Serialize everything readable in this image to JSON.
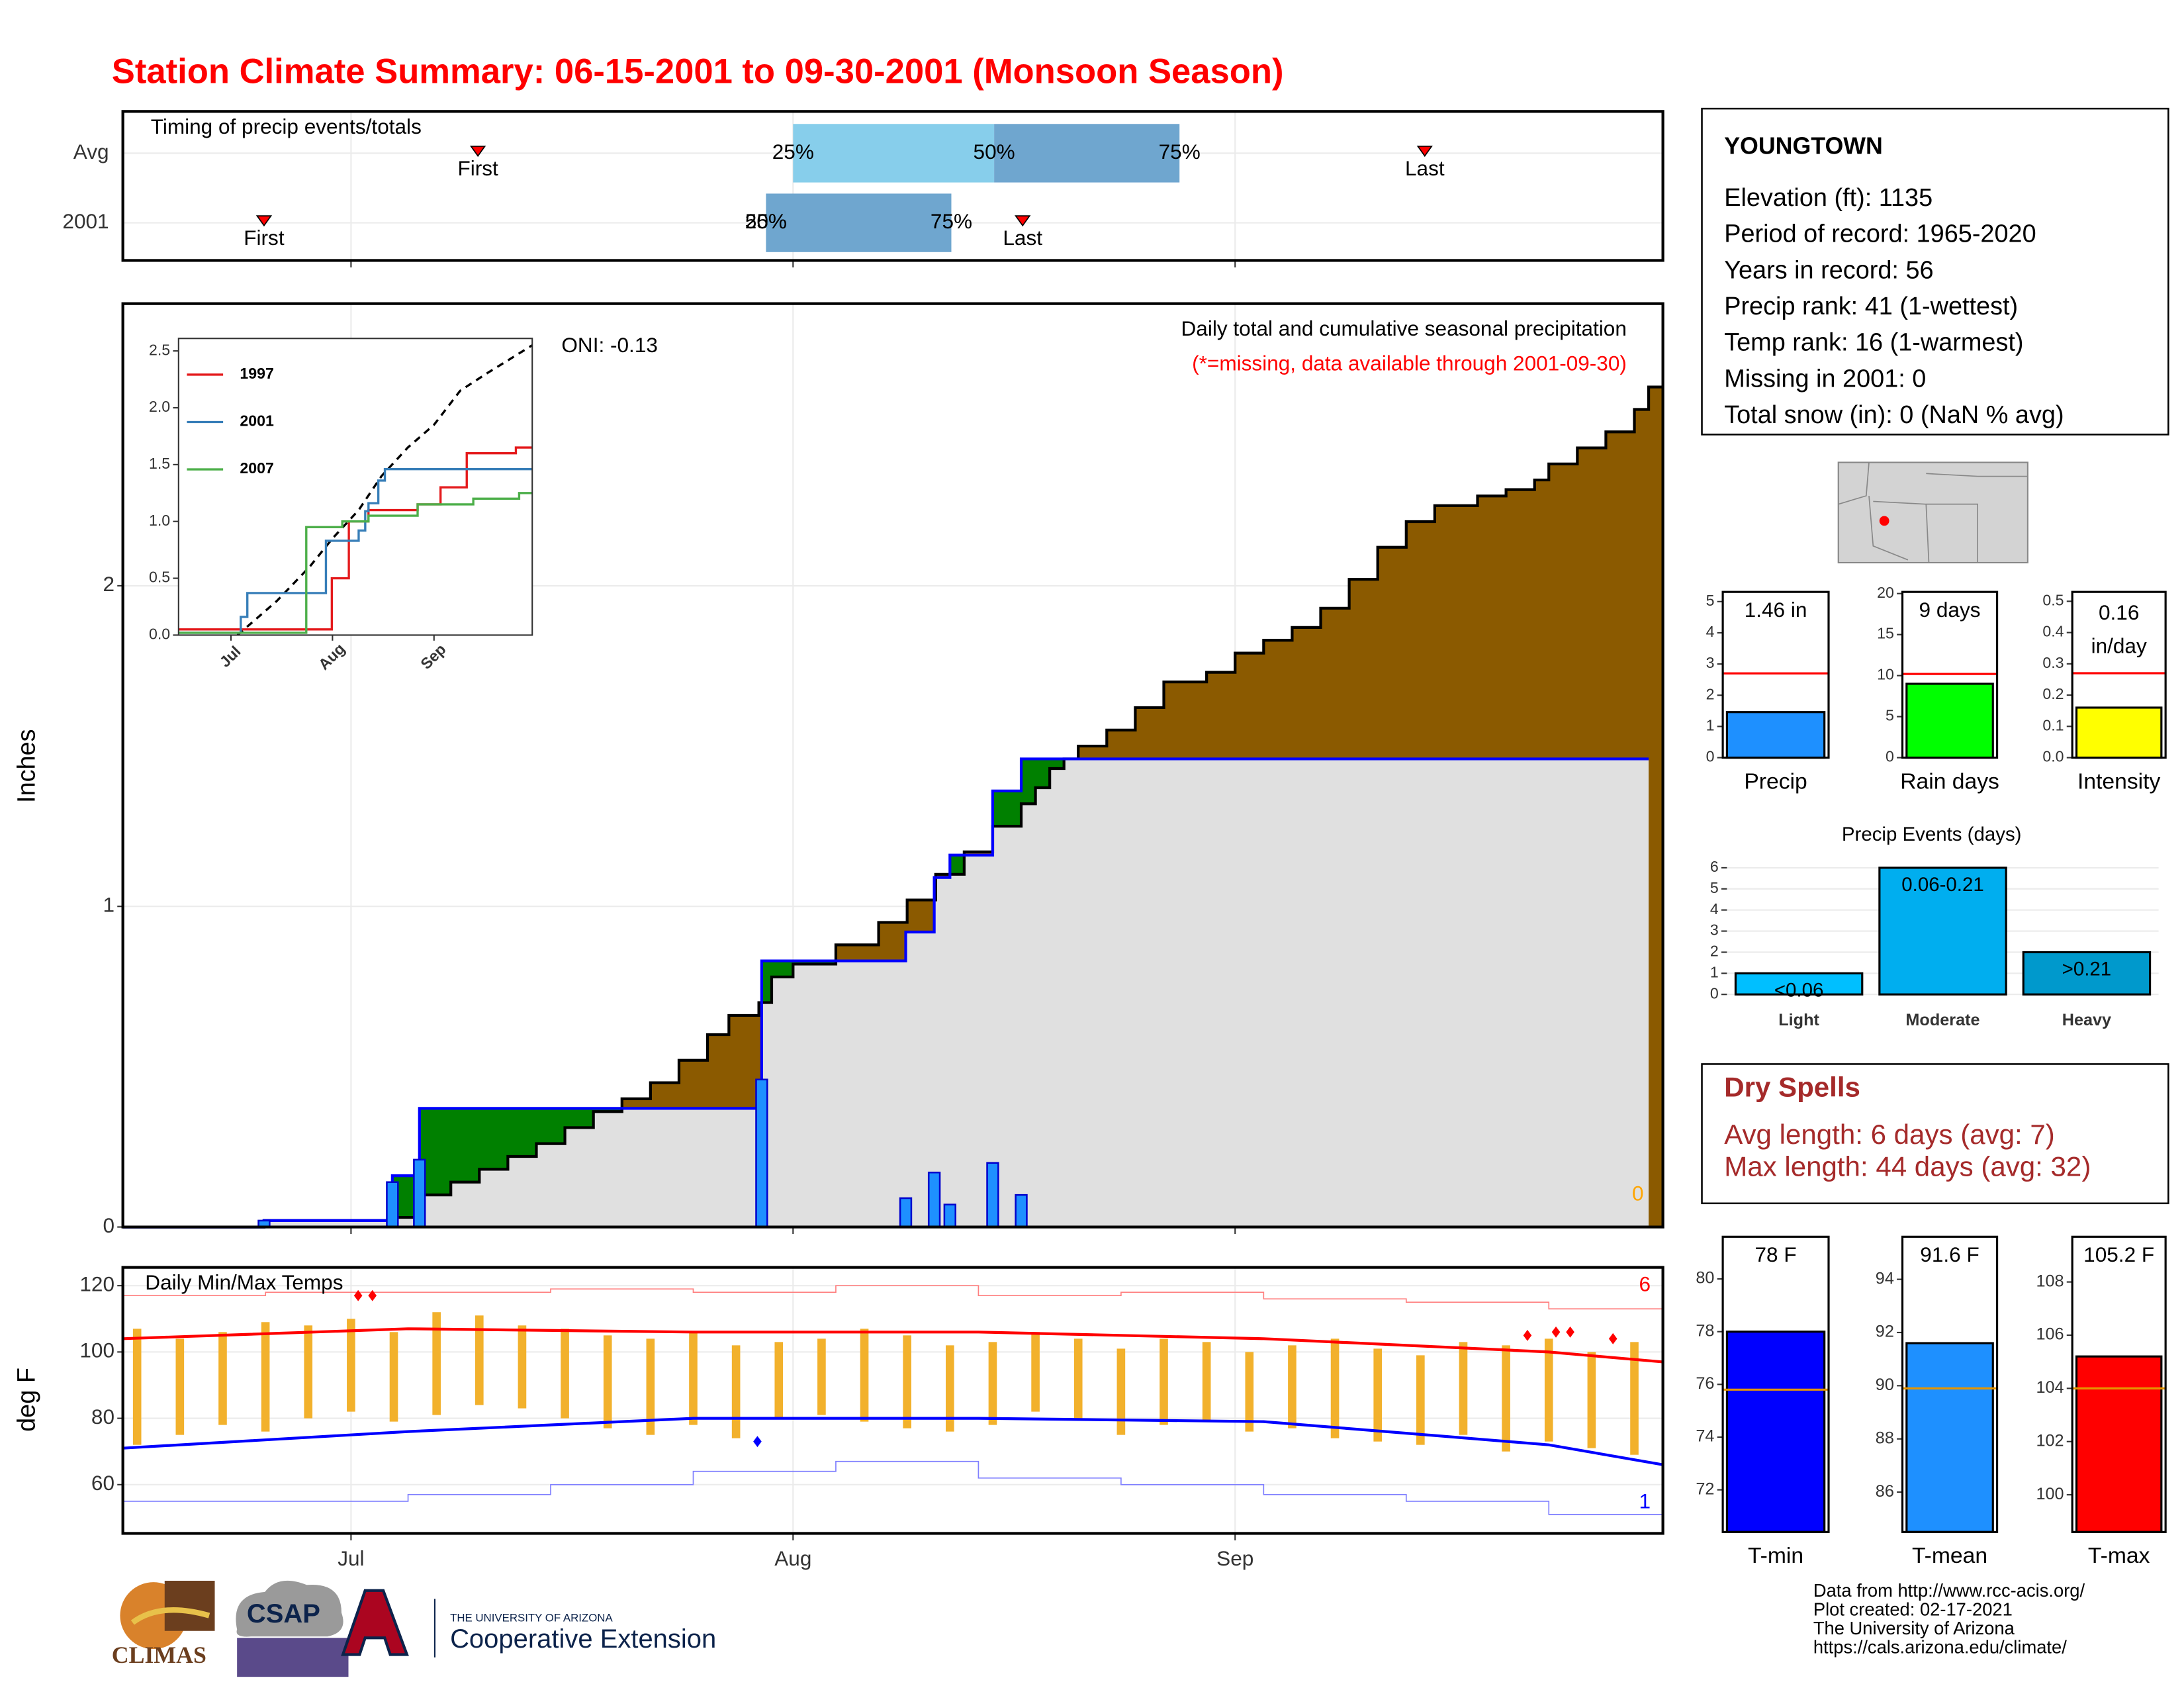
{
  "title": "Station Climate Summary: 06-15-2001 to 09-30-2001 (Monsoon Season)",
  "station": {
    "name": "YOUNGTOWN",
    "details": [
      "Elevation (ft): 1135",
      "Period of record: 1965-2020",
      "Years in record: 56",
      "Precip rank: 41 (1-wettest)",
      "Temp rank: 16 (1-warmest)",
      "Missing in 2001: 0",
      "Total snow (in): 0 (NaN % avg)"
    ]
  },
  "dry_spells": {
    "title": "Dry Spells",
    "details": [
      "Avg length: 6 days (avg: 7)",
      "Max length: 44 days (avg: 32)"
    ]
  },
  "footer": [
    "Data from http://www.rcc-acis.org/",
    "Plot created: 02-17-2021",
    "The University of Arizona",
    "https://cals.arizona.edu/climate/"
  ],
  "logos": [
    "CLIMAS",
    "CSAP",
    "THE UNIVERSITY OF ARIZONA",
    "Cooperative Extension"
  ],
  "chart_data": [
    {
      "type": "timing",
      "title": "Timing of precip events/totals",
      "categories": [
        "Avg",
        "2001"
      ],
      "first": [
        24.9,
        9.9
      ],
      "last": [
        91.3,
        63.1
      ],
      "q25": [
        47,
        45.1
      ],
      "q50": [
        61.1,
        45.1
      ],
      "q75": [
        74.1,
        58.1
      ],
      "first_label": "First",
      "last_label": "Last",
      "q25_label": "25%",
      "q50_label": "50%",
      "q75_label": "75%",
      "colors": [
        "#87ceeb",
        "#6fa6cf"
      ],
      "xlim": [
        0,
        108
      ],
      "xticks": [
        {
          "value": 16,
          "label": "Jul"
        },
        {
          "value": 47,
          "label": "Aug"
        },
        {
          "value": 78,
          "label": "Sep"
        }
      ]
    },
    {
      "type": "cumulative",
      "ylabel": "Inches",
      "subtitle": "Daily total and cumulative seasonal precipitation",
      "note": "(*=missing, data available through 2001-09-30)",
      "annotation": "ONI: -0.13",
      "missing": "0",
      "xlim": [
        0,
        108
      ],
      "xticks": [
        {
          "value": 16,
          "label": "Jul"
        },
        {
          "value": 47,
          "label": "Aug"
        },
        {
          "value": 78,
          "label": "Sep"
        }
      ],
      "ylim": [
        0,
        2.88
      ],
      "yticks": [
        0,
        1,
        2
      ],
      "grid": true,
      "series": [
        {
          "color": "#000000",
          "fill": "#8b5a00",
          "x": [
            0,
            9.9,
            18.6,
            20.7,
            23,
            25,
            27,
            29,
            31,
            33,
            35,
            37,
            39,
            41,
            42.5,
            44.6,
            45.5,
            47,
            50,
            53,
            55,
            57,
            59,
            61,
            63,
            64,
            65,
            66,
            67,
            69,
            71,
            73,
            76,
            78,
            80,
            82,
            84,
            86,
            88,
            90,
            92,
            95,
            97,
            99,
            100,
            102,
            104,
            106,
            107,
            108
          ],
          "values": [
            0,
            0.02,
            0.03,
            0.1,
            0.14,
            0.18,
            0.22,
            0.26,
            0.31,
            0.36,
            0.4,
            0.45,
            0.52,
            0.6,
            0.66,
            0.7,
            0.78,
            0.82,
            0.88,
            0.95,
            1.02,
            1.1,
            1.17,
            1.25,
            1.32,
            1.37,
            1.43,
            1.46,
            1.5,
            1.55,
            1.62,
            1.7,
            1.73,
            1.79,
            1.83,
            1.87,
            1.93,
            2.02,
            2.12,
            2.2,
            2.25,
            2.28,
            2.3,
            2.33,
            2.38,
            2.43,
            2.48,
            2.55,
            2.62,
            2.62
          ]
        },
        {
          "color": "#0000ff",
          "fill": "#008000",
          "x": [
            0,
            9.9,
            18.9,
            20.8,
            44.8,
            54.9,
            56.9,
            58,
            61,
            63,
            107
          ],
          "values": [
            0,
            0.02,
            0.16,
            0.37,
            0.83,
            0.92,
            1.09,
            1.16,
            1.36,
            1.46,
            1.46
          ]
        }
      ],
      "daily": {
        "color": "#1e90ff",
        "x": [
          9.9,
          18.9,
          20.8,
          44.8,
          54.9,
          56.9,
          58,
          61,
          63
        ],
        "values": [
          0.02,
          0.14,
          0.21,
          0.46,
          0.09,
          0.17,
          0.07,
          0.2,
          0.1
        ]
      }
    },
    {
      "type": "inset",
      "xlim": [
        0,
        108
      ],
      "xticks": [
        {
          "value": 16,
          "label": "Jul"
        },
        {
          "value": 47,
          "label": "Aug"
        },
        {
          "value": 78,
          "label": "Sep"
        }
      ],
      "ylim": [
        0,
        2.61
      ],
      "yticks": [
        {
          "value": 0,
          "label": "0.0"
        },
        {
          "value": 0.5,
          "label": "0.5"
        },
        {
          "value": 1,
          "label": "1.0"
        },
        {
          "value": 1.5,
          "label": "1.5"
        },
        {
          "value": 2,
          "label": "2.0"
        },
        {
          "value": 2.5,
          "label": "2.5"
        }
      ],
      "series": [
        {
          "name": "1997",
          "color": "#e41a1c",
          "x": [
            0,
            46.8,
            52,
            58,
            73,
            80,
            88,
            103,
            108
          ],
          "values": [
            0.05,
            0.5,
            1.0,
            1.1,
            1.15,
            1.3,
            1.6,
            1.65,
            1.65
          ]
        },
        {
          "name": "2001",
          "color": "#377eb8",
          "x": [
            0,
            19,
            21,
            45,
            55,
            57,
            58,
            61,
            63,
            108
          ],
          "values": [
            0.02,
            0.16,
            0.37,
            0.83,
            0.92,
            1.09,
            1.16,
            1.36,
            1.46,
            1.46
          ]
        },
        {
          "name": "2007",
          "color": "#4daf4a",
          "x": [
            0,
            39,
            50,
            58,
            73,
            90,
            104,
            108
          ],
          "values": [
            0.02,
            0.95,
            1.0,
            1.05,
            1.15,
            1.2,
            1.25,
            1.25
          ]
        }
      ],
      "average": {
        "color": "#000000",
        "x": [
          18,
          30,
          40,
          47,
          55,
          62,
          70,
          78,
          86,
          94,
          108
        ],
        "values": [
          0,
          0.3,
          0.6,
          0.85,
          1.1,
          1.4,
          1.65,
          1.85,
          2.15,
          2.3,
          2.55
        ]
      }
    },
    {
      "type": "temperature",
      "title": "Daily Min/Max Temps",
      "ylabel": "deg F",
      "record_high_count": "6",
      "record_low_count": "1",
      "xlim": [
        0,
        108
      ],
      "xticks": [
        {
          "value": 16,
          "label": "Jul"
        },
        {
          "value": 47,
          "label": "Aug"
        },
        {
          "value": 78,
          "label": "Sep"
        }
      ],
      "ylim": [
        45.3,
        125.5
      ],
      "yticks": [
        60,
        80,
        100,
        120
      ],
      "grid": true,
      "bar_color": "#f2b12c",
      "daily": {
        "x": [
          1,
          4,
          7,
          10,
          13,
          16,
          19,
          22,
          25,
          28,
          31,
          34,
          37,
          40,
          43,
          46,
          49,
          52,
          55,
          58,
          61,
          64,
          67,
          70,
          73,
          76,
          79,
          82,
          85,
          88,
          91,
          94,
          97,
          100,
          103,
          106
        ],
        "max": [
          107,
          104,
          106,
          109,
          108,
          110,
          106,
          112,
          111,
          108,
          107,
          105,
          104,
          106,
          102,
          103,
          104,
          107,
          105,
          102,
          103,
          106,
          104,
          101,
          104,
          103,
          100,
          102,
          104,
          101,
          99,
          103,
          102,
          104,
          100,
          103
        ],
        "min": [
          72,
          75,
          78,
          76,
          80,
          82,
          79,
          81,
          84,
          83,
          80,
          77,
          75,
          78,
          74,
          80,
          81,
          79,
          77,
          76,
          78,
          82,
          80,
          75,
          78,
          79,
          76,
          77,
          74,
          73,
          72,
          75,
          70,
          73,
          71,
          69
        ]
      },
      "normal_max": {
        "color": "#ff0000",
        "x": [
          0,
          20,
          40,
          60,
          80,
          100,
          108
        ],
        "values": [
          104,
          107,
          106,
          106,
          104,
          100,
          97
        ]
      },
      "normal_min": {
        "color": "#0000ff",
        "x": [
          0,
          20,
          40,
          60,
          80,
          100,
          108
        ],
        "values": [
          71,
          76,
          80,
          80,
          79,
          72,
          66
        ]
      },
      "record_max": {
        "color": "#ff8080",
        "x": [
          0,
          10,
          20,
          30,
          40,
          50,
          60,
          70,
          80,
          90,
          100,
          108
        ],
        "values": [
          117,
          118,
          118,
          119,
          118,
          120,
          117,
          118,
          116,
          115,
          113,
          112
        ]
      },
      "record_min": {
        "color": "#8080ff",
        "x": [
          0,
          10,
          20,
          30,
          40,
          50,
          60,
          70,
          80,
          90,
          100,
          108
        ],
        "values": [
          55,
          55,
          57,
          60,
          64,
          67,
          62,
          60,
          57,
          55,
          51,
          53
        ]
      },
      "record_highs": {
        "color": "#ff0000",
        "x": [
          16.5,
          17.5,
          98.5,
          100.5,
          101.5,
          104.5
        ],
        "values": [
          117,
          117,
          105,
          106,
          106,
          104
        ]
      },
      "record_lows": {
        "color": "#0000ff",
        "x": [
          44.5
        ],
        "values": [
          73
        ]
      }
    },
    {
      "type": "gauge",
      "categories": [
        "Precip"
      ],
      "values": [
        1.46
      ],
      "value_labels": [
        "1.46 in"
      ],
      "average": 2.7,
      "color": "#1e90ff",
      "average_color": "#ff0000",
      "ylim": [
        0,
        5.31
      ],
      "yticks": [
        0,
        1,
        2,
        3,
        4,
        5
      ]
    },
    {
      "type": "gauge",
      "categories": [
        "Rain days"
      ],
      "values": [
        9
      ],
      "value_labels": [
        "9 days"
      ],
      "average": 10.2,
      "color": "#00ff00",
      "average_color": "#ff0000",
      "ylim": [
        0,
        20.2
      ],
      "yticks": [
        0,
        5,
        10,
        15,
        20
      ]
    },
    {
      "type": "gauge",
      "categories": [
        "Intensity"
      ],
      "values": [
        0.16
      ],
      "value_labels": [
        "0.16 in/day"
      ],
      "average": 0.27,
      "color": "#ffff00",
      "average_color": "#ff0000",
      "ylim": [
        0,
        0.53
      ],
      "yticks": [
        {
          "value": 0,
          "label": "0.0"
        },
        {
          "value": 0.1,
          "label": "0.1"
        },
        {
          "value": 0.2,
          "label": "0.2"
        },
        {
          "value": 0.3,
          "label": "0.3"
        },
        {
          "value": 0.4,
          "label": "0.4"
        },
        {
          "value": 0.5,
          "label": "0.5"
        }
      ]
    },
    {
      "type": "events",
      "title": "Precip Events (days)",
      "categories": [
        "Light",
        "Moderate",
        "Heavy"
      ],
      "values": [
        1,
        6,
        2
      ],
      "value_labels": [
        "<0.06",
        "0.06-0.21",
        ">0.21"
      ],
      "colors": [
        "#00bfff",
        "#00aeef",
        "#0099cc"
      ],
      "ylim": [
        0,
        6.4
      ],
      "yticks": [
        0,
        1,
        2,
        3,
        4,
        5,
        6
      ],
      "grid": true
    },
    {
      "type": "gauge",
      "categories": [
        "T-min"
      ],
      "values": [
        78
      ],
      "value_labels": [
        "78 F"
      ],
      "average": 75.8,
      "color": "#0000ff",
      "average_color": "#e69500",
      "ylim": [
        70.4,
        81.6
      ],
      "yticks": [
        72,
        74,
        76,
        78,
        80
      ]
    },
    {
      "type": "gauge",
      "categories": [
        "T-mean"
      ],
      "values": [
        91.6
      ],
      "value_labels": [
        "91.6 F"
      ],
      "average": 89.9,
      "color": "#1e90ff",
      "average_color": "#e69500",
      "ylim": [
        84.5,
        95.6
      ],
      "yticks": [
        86,
        88,
        90,
        92,
        94
      ]
    },
    {
      "type": "gauge",
      "categories": [
        "T-max"
      ],
      "values": [
        105.2
      ],
      "value_labels": [
        "105.2 F"
      ],
      "average": 104,
      "color": "#ff0000",
      "average_color": "#e69500",
      "ylim": [
        98.6,
        109.7
      ],
      "yticks": [
        100,
        102,
        104,
        106,
        108
      ]
    }
  ]
}
